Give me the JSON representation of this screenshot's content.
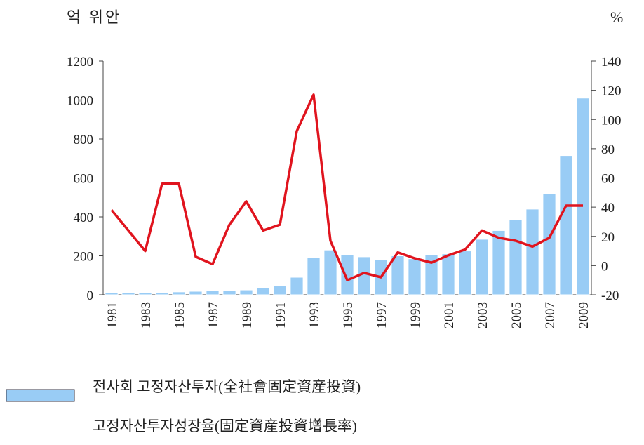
{
  "chart_data": {
    "type": "bar",
    "y_unit_label": "억 위안",
    "y2_unit_label": "%",
    "categories": [
      "1981",
      null,
      "1983",
      null,
      "1985",
      null,
      "1987",
      null,
      "1989",
      null,
      "1991",
      null,
      "1993",
      null,
      "1995",
      null,
      "1997",
      null,
      "1999",
      null,
      "2001",
      null,
      "2003",
      null,
      "2005",
      null,
      "2007",
      null,
      "2009"
    ],
    "series": [
      {
        "name": "전사회 고정자산투자(全社會固定資産投資)",
        "type": "bar",
        "color": "#99ccf5",
        "values": [
          12,
          10,
          9,
          10,
          15,
          18,
          20,
          22,
          25,
          35,
          45,
          90,
          190,
          230,
          205,
          195,
          180,
          200,
          185,
          205,
          210,
          225,
          285,
          330,
          385,
          440,
          520,
          715,
          1010
        ]
      },
      {
        "name": "고정자산투자성장율(固定資産投資增長率)",
        "type": "line",
        "axis": "y2",
        "color": "#e0141e",
        "values": [
          38,
          24,
          10,
          56,
          56,
          6,
          1,
          28,
          44,
          24,
          28,
          92,
          117,
          17,
          -10,
          -5,
          -8,
          9,
          5,
          2,
          7,
          11,
          24,
          19,
          17,
          13,
          19,
          41,
          41
        ]
      }
    ],
    "ylim": [
      0,
      1200
    ],
    "yticks": [
      0,
      200,
      400,
      600,
      800,
      1000,
      1200
    ],
    "y2lim": [
      -20,
      140
    ],
    "y2ticks": [
      -20,
      0,
      20,
      40,
      60,
      80,
      100,
      120,
      140
    ]
  }
}
